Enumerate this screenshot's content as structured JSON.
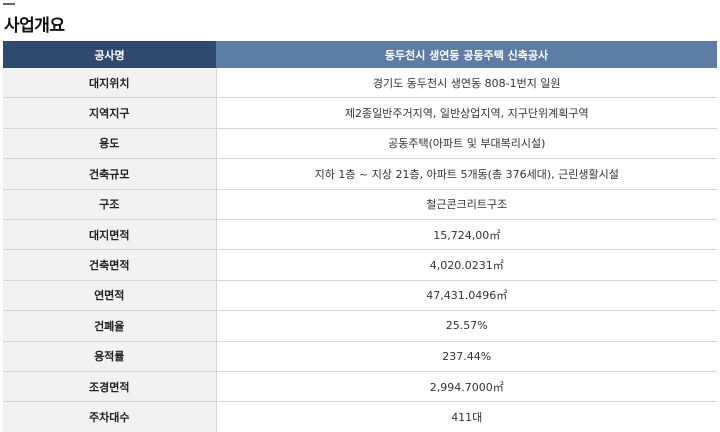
{
  "page": {
    "title": "사업개요"
  },
  "table": {
    "header": {
      "label": "공사명",
      "value": "동두천시 생연동 공동주택 신축공사"
    },
    "rows": [
      {
        "label": "대지위치",
        "value": "경기도 동두천시 생연동 808-1번지 일원"
      },
      {
        "label": "지역지구",
        "value": "제2종일반주거지역, 일반상업지역, 지구단위계획구역"
      },
      {
        "label": "용도",
        "value": "공동주택(아파트 및 부대복리시설)"
      },
      {
        "label": "건축규모",
        "value": "지하 1층 ~ 지상 21층, 아파트 5개동(총 376세대), 근린생활시설"
      },
      {
        "label": "구조",
        "value": "철근콘크리트구조"
      },
      {
        "label": "대지면적",
        "value": "15,724,00㎡"
      },
      {
        "label": "건축면적",
        "value": "4,020.0231㎡"
      },
      {
        "label": "연면적",
        "value": "47,431.0496㎡"
      },
      {
        "label": "건폐율",
        "value": "25.57%"
      },
      {
        "label": "용적률",
        "value": "237.44%"
      },
      {
        "label": "조경면적",
        "value": "2,994.7000㎡"
      },
      {
        "label": "주차대수",
        "value": "411대"
      }
    ]
  }
}
